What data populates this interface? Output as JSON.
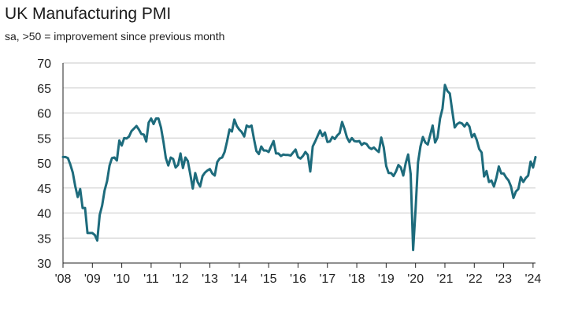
{
  "chart_data": {
    "type": "line",
    "title": "UK Manufacturing PMI",
    "subtitle": "sa, >50 = improvement since previous month",
    "xlabel": "",
    "ylabel": "",
    "ylim": [
      30,
      70
    ],
    "yticks": [
      30,
      35,
      40,
      45,
      50,
      55,
      60,
      65,
      70
    ],
    "xticks": [
      "'08",
      "'09",
      "'10",
      "'11",
      "'12",
      "'13",
      "'14",
      "'15",
      "'16",
      "'17",
      "'18",
      "'19",
      "'20",
      "'21",
      "'22",
      "'23",
      "'24"
    ],
    "grid": "horizontal",
    "legend": "none",
    "line_color": "#1d6b7c",
    "series": [
      {
        "name": "",
        "x_start": "2008-01",
        "frequency": "monthly",
        "values": [
          51.2,
          51.2,
          51.0,
          49.7,
          48.1,
          45.4,
          43.2,
          44.8,
          41.0,
          41.0,
          36.0,
          36.0,
          36.0,
          35.6,
          34.5,
          39.6,
          41.5,
          44.5,
          46.4,
          49.5,
          51.0,
          51.1,
          50.5,
          54.5,
          53.5,
          55.0,
          54.9,
          55.3,
          56.4,
          56.9,
          57.4,
          56.7,
          55.8,
          55.7,
          54.3,
          58.1,
          58.9,
          57.8,
          58.9,
          58.9,
          57.1,
          54.3,
          51.0,
          49.5,
          51.1,
          50.8,
          49.1,
          49.6,
          51.9,
          49.0,
          51.1,
          50.4,
          47.7,
          44.9,
          48.0,
          46.2,
          45.3,
          47.4,
          48.1,
          48.5,
          48.8,
          47.9,
          47.5,
          50.2,
          50.9,
          51.1,
          52.2,
          54.3,
          56.7,
          56.3,
          58.7,
          57.4,
          56.7,
          56.2,
          55.3,
          57.5,
          57.2,
          57.5,
          54.8,
          52.4,
          51.8,
          53.3,
          52.5,
          52.5,
          52.2,
          53.3,
          54.4,
          51.9,
          51.9,
          51.4,
          51.7,
          51.6,
          51.6,
          51.5,
          52.1,
          52.7,
          51.2,
          50.9,
          51.4,
          52.2,
          51.6,
          48.3,
          53.3,
          54.3,
          55.4,
          56.5,
          55.4,
          56.1,
          54.2,
          54.3,
          55.2,
          54.8,
          55.5,
          56.0,
          58.2,
          56.8,
          55.1,
          54.2,
          55.0,
          54.4,
          54.3,
          54.4,
          53.6,
          54.0,
          53.8,
          53.1,
          52.8,
          53.1,
          52.6,
          52.2,
          55.1,
          53.1,
          49.4,
          48.0,
          48.0,
          47.4,
          48.3,
          49.6,
          49.1,
          47.5,
          50.0,
          51.7,
          47.8,
          32.6,
          40.7,
          50.1,
          53.3,
          55.2,
          54.1,
          53.7,
          55.6,
          57.5,
          54.1,
          55.1,
          58.9,
          60.9,
          65.6,
          64.4,
          63.9,
          60.4,
          57.1,
          57.8,
          58.1,
          57.9,
          57.3,
          58.0,
          57.3,
          55.2,
          55.8,
          54.6,
          52.8,
          52.1,
          47.3,
          48.4,
          46.2,
          46.5,
          45.3,
          47.0,
          49.3,
          47.9,
          47.9,
          47.1,
          46.5,
          45.3,
          43.0,
          44.3,
          44.8,
          47.2,
          46.2,
          47.0,
          47.5,
          50.3,
          49.1,
          51.2
        ]
      }
    ]
  }
}
